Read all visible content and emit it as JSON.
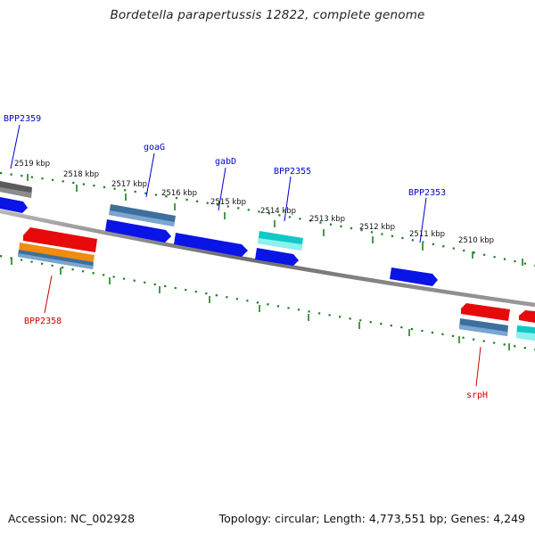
{
  "title": "Bordetella parapertussis 12822, complete genome",
  "footer": {
    "accession": "Accession: NC_002928",
    "topology": "Topology: circular; Length: 4,773,551 bp; Genes: 4,249"
  },
  "colors": {
    "background": "#ffffff",
    "backbone": "#8a8a8a",
    "tick": "#1e7d1e",
    "label_forward": "#0000cc",
    "label_reverse": "#cc0000",
    "gene_blue": "#0a14e6",
    "gene_red": "#e60a0a",
    "gene_cyan": "#10c8c8",
    "gene_steel": "#4a7fb0",
    "gene_orange": "#f08c10",
    "gene_gray": "#606060"
  },
  "scale_labels": [
    "2519 kbp",
    "2518 kbp",
    "2517 kbp",
    "2516 kbp",
    "2515 kbp",
    "2514 kbp",
    "2513 kbp",
    "2512 kbp",
    "2511 kbp",
    "2510 kbp"
  ],
  "gene_labels": [
    {
      "text": "BPP2359",
      "strand": "forward"
    },
    {
      "text": "goaG",
      "strand": "forward"
    },
    {
      "text": "gabD",
      "strand": "forward"
    },
    {
      "text": "BPP2355",
      "strand": "forward"
    },
    {
      "text": "BPP2353",
      "strand": "forward"
    },
    {
      "text": "BPP2358",
      "strand": "reverse"
    },
    {
      "text": "srpH",
      "strand": "reverse"
    }
  ]
}
